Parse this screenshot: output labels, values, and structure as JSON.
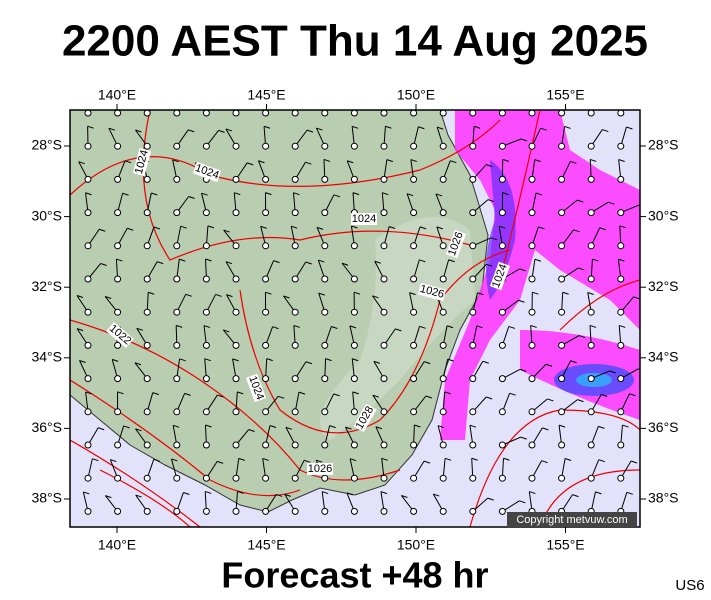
{
  "header": {
    "title": "2200 AEST Thu 14 Aug 2025"
  },
  "map": {
    "lon_ticks": [
      {
        "value": 140,
        "label": "140°E"
      },
      {
        "value": 145,
        "label": "145°E"
      },
      {
        "value": 150,
        "label": "150°E"
      },
      {
        "value": 155,
        "label": "155°E"
      }
    ],
    "lat_ticks": [
      {
        "value": 28,
        "label": "28°S"
      },
      {
        "value": 30,
        "label": "30°S"
      },
      {
        "value": 32,
        "label": "32°S"
      },
      {
        "value": 34,
        "label": "34°S"
      },
      {
        "value": 36,
        "label": "36°S"
      },
      {
        "value": 38,
        "label": "38°S"
      }
    ],
    "isobar_labels": [
      "1024",
      "1024",
      "1024",
      "1026",
      "1024",
      "1026",
      "1022",
      "1024",
      "1028",
      "1026"
    ],
    "copyright": "Copyright metvuw.com"
  },
  "footer": {
    "forecast": "Forecast +48 hr",
    "region": "US6"
  }
}
